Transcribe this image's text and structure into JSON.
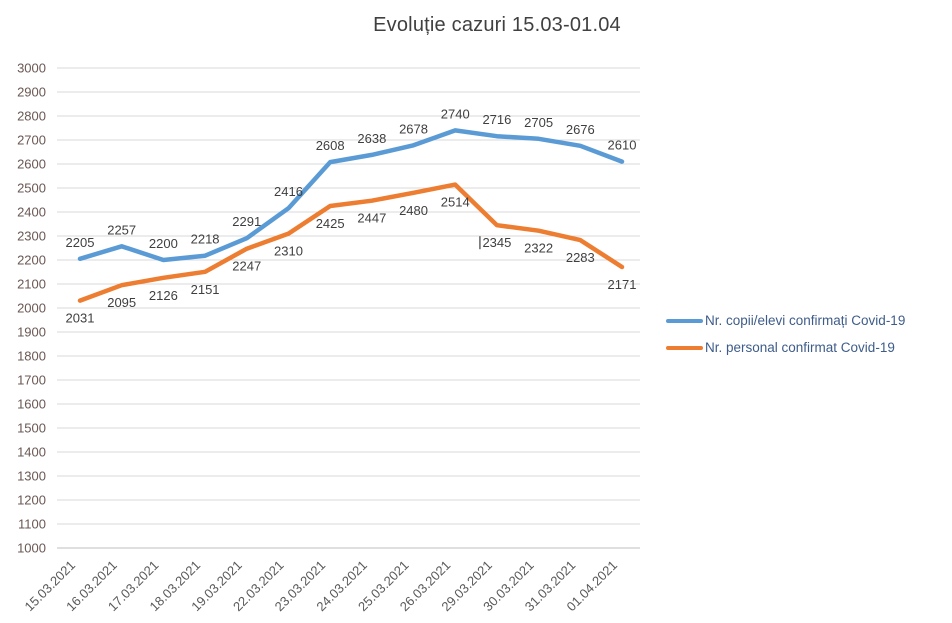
{
  "title": "Evoluție cazuri 15.03-01.04",
  "colors": {
    "series_blue": "#5B9BD5",
    "series_orange": "#ED7D31",
    "gridline": "#D9D9D9",
    "axis_line": "#BFBFBF",
    "data_label": "#3F3F3F",
    "x_tick_label": "#595959",
    "y_tick_label": "#6A5853",
    "title_text": "#404040",
    "legend_text": "#3E5C8A",
    "background": "#FFFFFF"
  },
  "chart_data": {
    "type": "line",
    "title": "Evoluție cazuri 15.03-01.04",
    "categories": [
      "15.03.2021",
      "16.03.2021",
      "17.03.2021",
      "18.03.2021",
      "19.03.2021",
      "22.03.2021",
      "23.03.2021",
      "24.03.2021",
      "25.03.2021",
      "26.03.2021",
      "29.03.2021",
      "30.03.2021",
      "31.03.2021",
      "01.04.2021"
    ],
    "series": [
      {
        "name": "Nr. copii/elevi confirmați Covid-19",
        "color": "#5B9BD5",
        "values": [
          2205,
          2257,
          2200,
          2218,
          2291,
          2416,
          2608,
          2638,
          2678,
          2740,
          2716,
          2705,
          2676,
          2610
        ],
        "label_position": "above"
      },
      {
        "name": "Nr. personal confirmat Covid-19",
        "color": "#ED7D31",
        "values": [
          2031,
          2095,
          2126,
          2151,
          2247,
          2310,
          2425,
          2447,
          2480,
          2514,
          2345,
          2322,
          2283,
          2171
        ],
        "label_position": "below",
        "cursor_before_label_index": 10
      }
    ],
    "xlabel": "",
    "ylabel": "",
    "ylim": [
      1000,
      3000
    ],
    "ytick_step": 100,
    "grid": "horizontal",
    "legend_position": "right",
    "data_labels": true
  }
}
